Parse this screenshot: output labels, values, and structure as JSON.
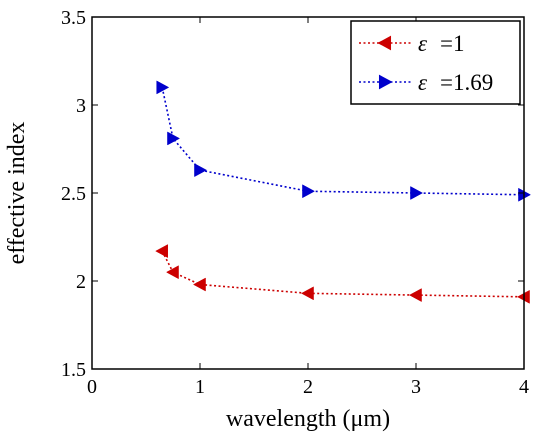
{
  "chart_data": {
    "type": "line",
    "xlabel": "wavelength (μm)",
    "ylabel": "effective index",
    "xlim": [
      0,
      4
    ],
    "ylim": [
      1.5,
      3.5
    ],
    "x_ticks": [
      "0",
      "1",
      "2",
      "3",
      "4"
    ],
    "y_ticks": [
      "1.5",
      "2",
      "2.5",
      "3",
      "3.5"
    ],
    "grid": false,
    "legend_position": "top-right",
    "series": [
      {
        "name": "ε =1",
        "symbol": "ε",
        "value_label": "=1",
        "color": "#cc0000",
        "marker": "triangle-left",
        "line_style": "dotted",
        "x": [
          0.65,
          0.75,
          1.0,
          2.0,
          3.0,
          4.0
        ],
        "y": [
          2.17,
          2.05,
          1.98,
          1.93,
          1.92,
          1.91
        ]
      },
      {
        "name": "ε =1.69",
        "symbol": "ε",
        "value_label": "=1.69",
        "color": "#0000cc",
        "marker": "triangle-right",
        "line_style": "dotted",
        "x": [
          0.65,
          0.75,
          1.0,
          2.0,
          3.0,
          4.0
        ],
        "y": [
          3.1,
          2.81,
          2.63,
          2.51,
          2.5,
          2.49
        ]
      }
    ]
  }
}
